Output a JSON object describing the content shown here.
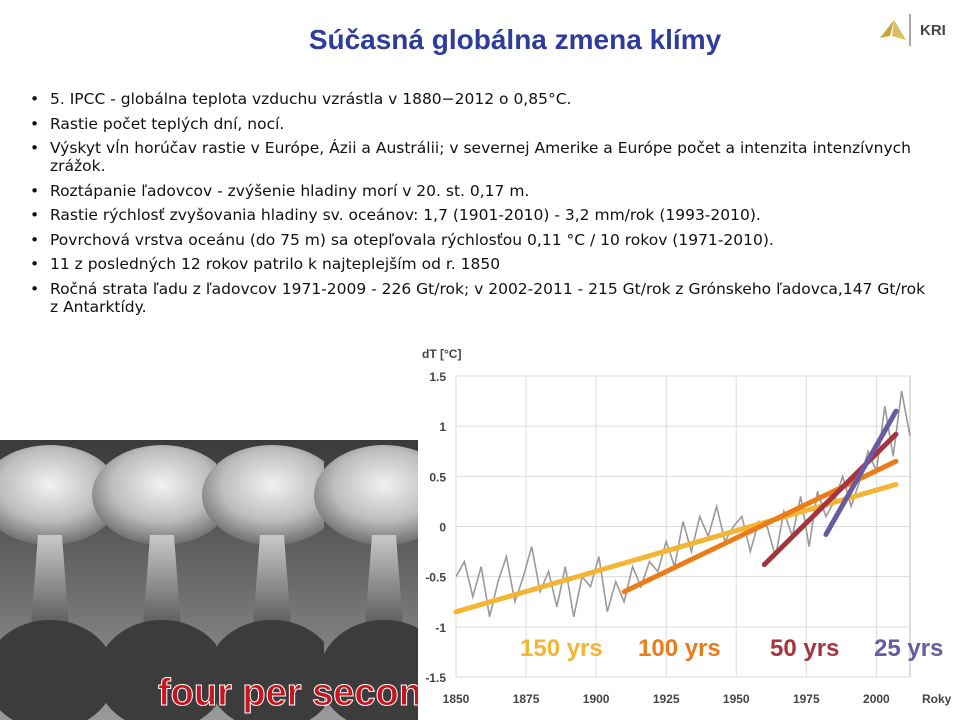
{
  "slide": {
    "title": "Súčasná globálna zmena klímy",
    "logo_text": "KRI",
    "bullets": [
      "5. IPCC - globálna teplota vzduchu vzrástla v 1880−2012 o 0,85°C.",
      "Rastie počet teplých dní, nocí.",
      "Výskyt vĺn horúčav rastie v Európe, Ázii a Austrálii; v severnej Amerike a Európe počet a intenzita intenzívnych zrážok.",
      "Roztápanie ľadovcov - zvýšenie hladiny morí  v 20. st. 0,17 m.",
      "Rastie rýchlosť zvyšovania hladiny sv. oceánov: 1,7 (1901-2010) - 3,2 mm/rok (1993-2010).",
      "Povrchová vrstva oceánu (do 75 m) sa otepľovala rýchlosťou 0,11 °C / 10 rokov (1971-2010).",
      "11 z posledných 12 rokov patrilo k najteplejším od r. 1850",
      "Ročná strata ľadu z ľadovcov 1971-2009 - 226 Gt/rok; v 2002-2011 - 215 Gt/rok z Grónskeho ľadovca,147 Gt/rok z Antarktídy."
    ]
  },
  "photo": {
    "caption": "four per second",
    "caption_color": "#c8141e"
  },
  "chart_data": {
    "type": "line",
    "ylabel": "dT [°C]",
    "xlabel": "Roky",
    "xlim": [
      1850,
      2012
    ],
    "ylim": [
      -1.5,
      1.5
    ],
    "x_ticks": [
      "1850",
      "1875",
      "1900",
      "1925",
      "1950",
      "1975",
      "2000"
    ],
    "y_ticks": [
      "1.5",
      "1",
      "0.5",
      "0",
      "-0.5",
      "-1",
      "-1.5"
    ],
    "grid": true,
    "series": [
      {
        "color": "#9a9a9a",
        "x": [
          1850,
          1853,
          1856,
          1859,
          1862,
          1865,
          1868,
          1871,
          1874,
          1877,
          1880,
          1883,
          1886,
          1889,
          1892,
          1895,
          1898,
          1901,
          1904,
          1907,
          1910,
          1913,
          1916,
          1919,
          1922,
          1925,
          1928,
          1931,
          1934,
          1937,
          1940,
          1943,
          1946,
          1949,
          1952,
          1955,
          1958,
          1961,
          1964,
          1967,
          1970,
          1973,
          1976,
          1979,
          1982,
          1985,
          1988,
          1991,
          1994,
          1997,
          2000,
          2003,
          2006,
          2009,
          2012
        ],
        "y": [
          -0.5,
          -0.35,
          -0.7,
          -0.4,
          -0.9,
          -0.55,
          -0.3,
          -0.75,
          -0.5,
          -0.2,
          -0.65,
          -0.45,
          -0.8,
          -0.4,
          -0.9,
          -0.5,
          -0.6,
          -0.3,
          -0.85,
          -0.55,
          -0.75,
          -0.4,
          -0.6,
          -0.35,
          -0.45,
          -0.15,
          -0.4,
          0.05,
          -0.25,
          0.1,
          -0.1,
          0.2,
          -0.15,
          0.0,
          0.1,
          -0.25,
          0.05,
          0.0,
          -0.3,
          0.15,
          -0.1,
          0.3,
          -0.2,
          0.35,
          0.1,
          0.25,
          0.5,
          0.2,
          0.45,
          0.75,
          0.55,
          1.2,
          0.7,
          1.35,
          0.9
        ]
      },
      {
        "name": "150 yrs",
        "color": "#f3b533",
        "x": [
          1850,
          2007
        ],
        "y": [
          -0.85,
          0.42
        ]
      },
      {
        "name": "100 yrs",
        "color": "#ea7c1a",
        "x": [
          1910,
          2007
        ],
        "y": [
          -0.65,
          0.65
        ]
      },
      {
        "name": "50 yrs",
        "color": "#a6343e",
        "x": [
          1960,
          2007
        ],
        "y": [
          -0.38,
          0.92
        ]
      },
      {
        "name": "25 yrs",
        "color": "#6a5aa2",
        "x": [
          1982,
          2007
        ],
        "y": [
          -0.08,
          1.15
        ]
      }
    ]
  }
}
